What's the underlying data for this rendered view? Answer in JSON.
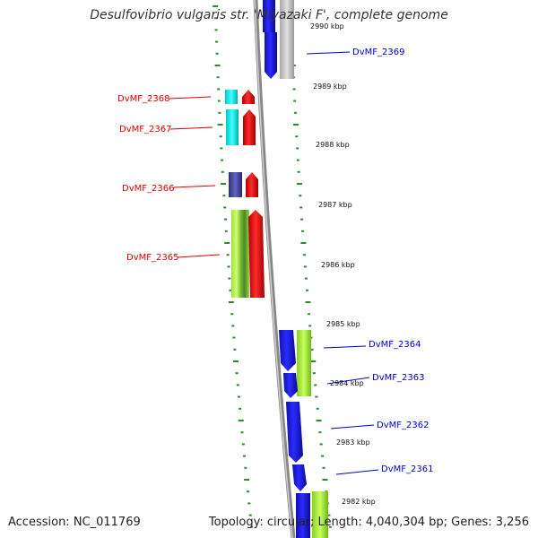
{
  "header": {
    "title": "Desulfovibrio vulgaris str. 'Miyazaki F', complete genome"
  },
  "footer": {
    "accession": "Accession: NC_011769",
    "summary": "Topology: circular; Length: 4,040,304 bp; Genes: 3,256"
  },
  "colors": {
    "backbone": "#999999",
    "left_label": "#dd0000",
    "right_label": "#0000cc",
    "dots": "#2c8a2c",
    "strand_forward": "#0000ee",
    "strand_reverse": "#ee0000",
    "gray_gene": "#c8c8c8",
    "cyan_gene": "#00eeee",
    "purple_gene": "#4a4aa0",
    "lime_gene": "#aaf040",
    "green_gene": "#7cc850"
  },
  "ticks": [
    {
      "label": "2990 kbp"
    },
    {
      "label": "2989 kbp"
    },
    {
      "label": "2988 kbp"
    },
    {
      "label": "2987 kbp"
    },
    {
      "label": "2986 kbp"
    },
    {
      "label": "2985 kbp"
    },
    {
      "label": "2984 kbp"
    },
    {
      "label": "2983 kbp"
    },
    {
      "label": "2982 kbp"
    }
  ],
  "genes_left": [
    {
      "name": "DvMF_2368"
    },
    {
      "name": "DvMF_2367"
    },
    {
      "name": "DvMF_2366"
    },
    {
      "name": "DvMF_2365"
    }
  ],
  "genes_right": [
    {
      "name": "DvMF_2369"
    },
    {
      "name": "DvMF_2364"
    },
    {
      "name": "DvMF_2363"
    },
    {
      "name": "DvMF_2362"
    },
    {
      "name": "DvMF_2361"
    }
  ]
}
